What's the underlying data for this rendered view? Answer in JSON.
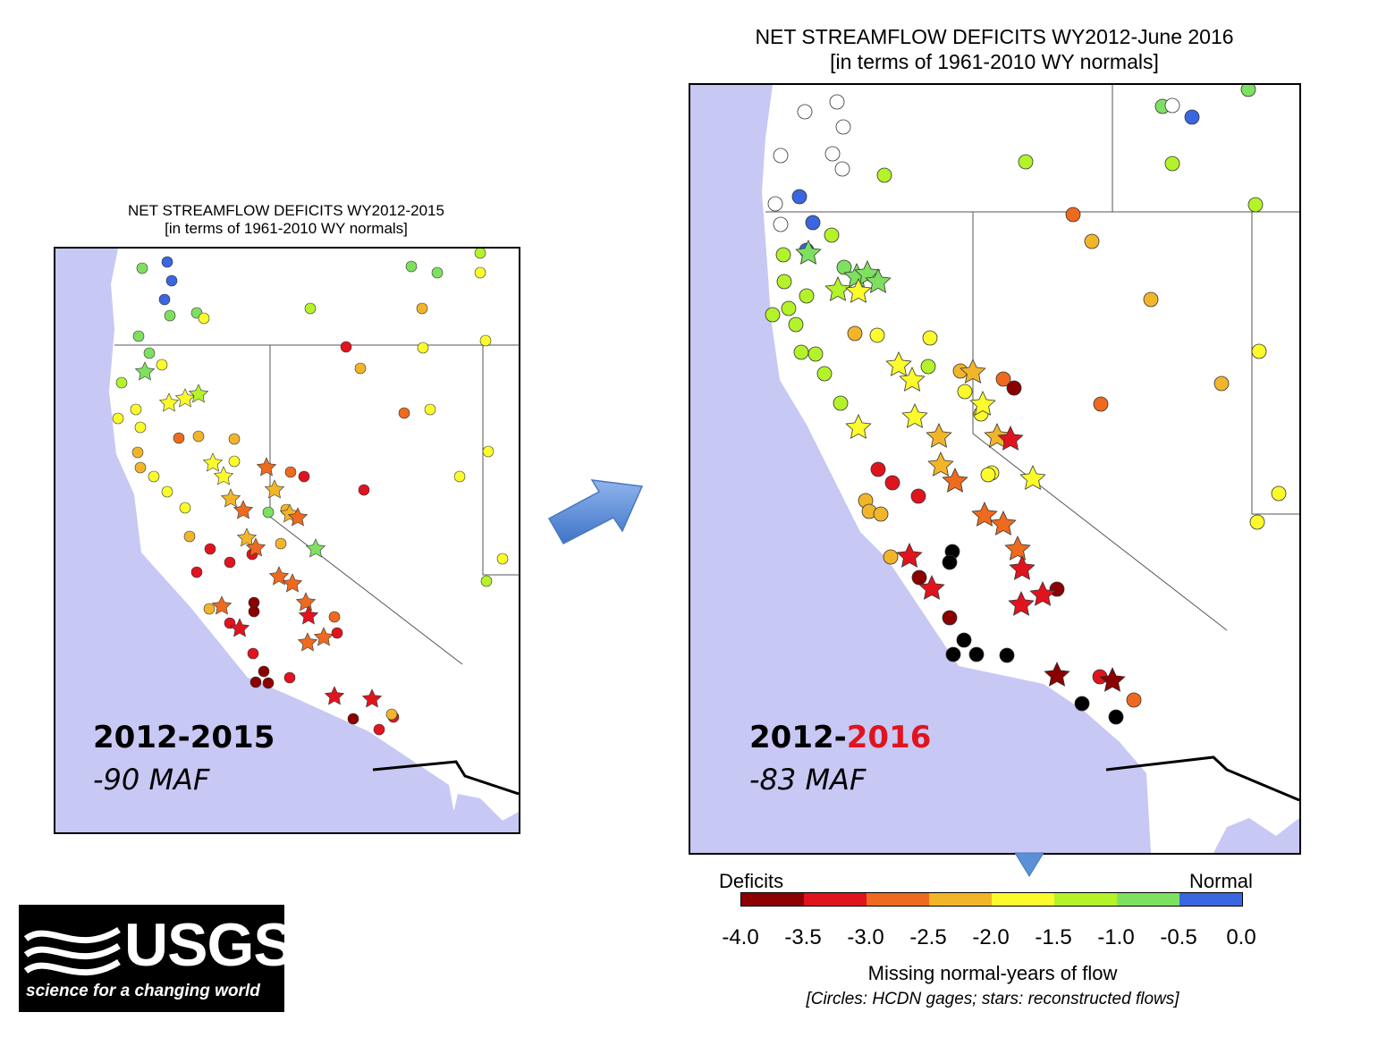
{
  "left_map": {
    "title_line1": "NET STREAMFLOW DEFICITS WY2012-2015",
    "title_line2": "[in terms of 1961-2010 WY normals]",
    "period": "2012-2015",
    "total": "-90 MAF"
  },
  "right_map": {
    "title_line1": "NET STREAMFLOW DEFICITS WY2012-June 2016",
    "title_line2": "[in terms of 1961-2010 WY normals]",
    "period_start": "2012-",
    "period_end": "2016",
    "total": "-83 MAF"
  },
  "legend": {
    "left_label": "Deficits",
    "right_label": "Normal",
    "ticks": [
      "-4.0",
      "-3.5",
      "-3.0",
      "-2.5",
      "-2.0",
      "-1.5",
      "-1.0",
      "-0.5",
      "0.0"
    ],
    "colors": [
      "#8b0000",
      "#e0141e",
      "#ee6a1e",
      "#f2b52a",
      "#fbfb2c",
      "#b4f22a",
      "#7ee060",
      "#3a66e0"
    ],
    "title": "Missing normal-years of flow",
    "note": "[Circles: HCDN gages; stars: reconstructed flows]"
  },
  "logo": {
    "wordmark": "USGS",
    "tagline": "science for a changing world"
  },
  "colors": {
    "ocean": "#c8c8f5",
    "land": "#ffffff",
    "arrow": "#5b8fd6",
    "no_data": "#ffffff",
    "extreme": "#000000"
  },
  "map_symbols": [
    "circle",
    "star"
  ]
}
